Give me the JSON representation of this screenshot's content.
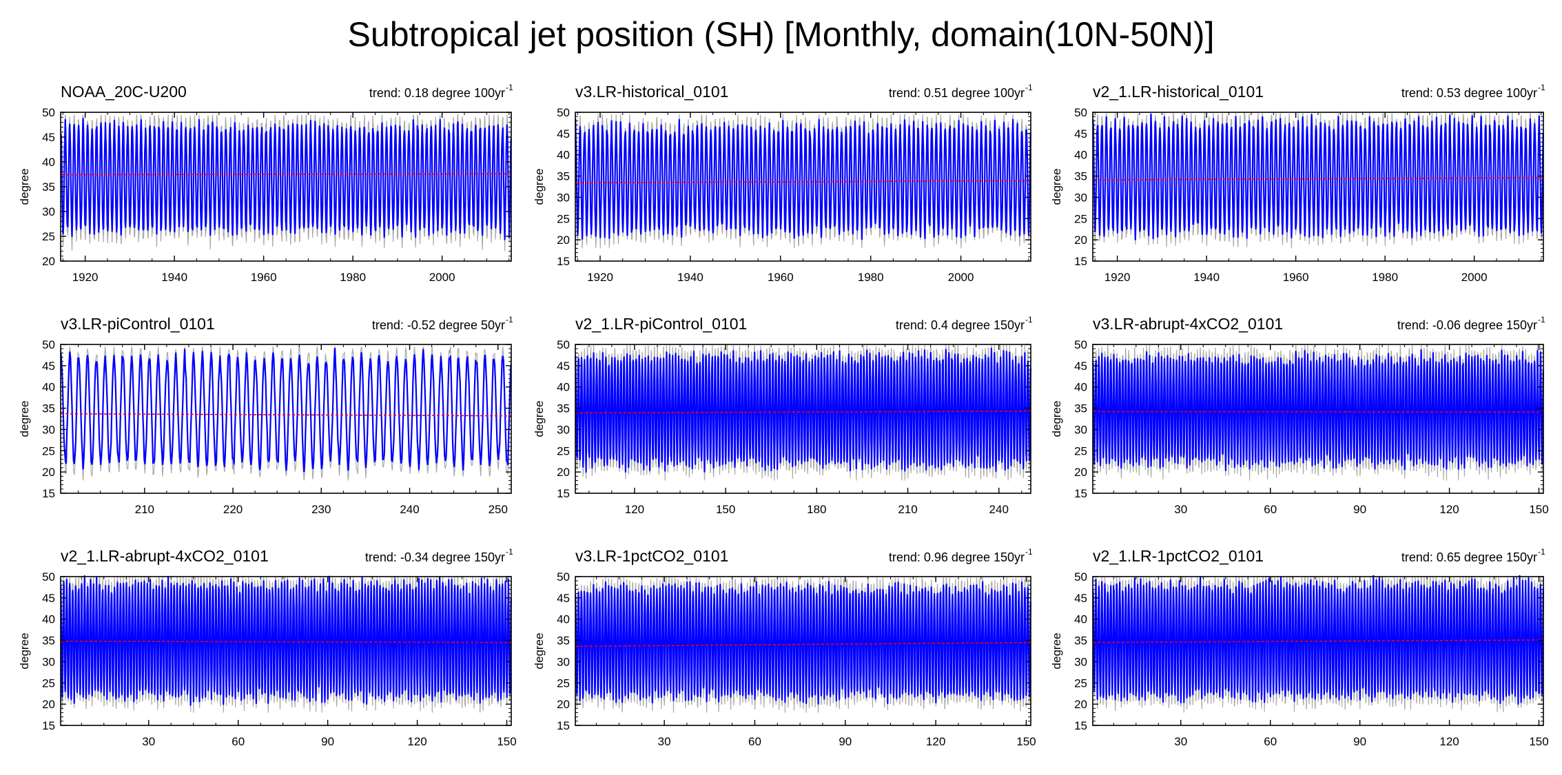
{
  "title": "Subtropical jet position (SH) [Monthly, domain(10N-50N)]",
  "colors": {
    "series": "#0000ff",
    "envelope": "#a9a9a9",
    "trend": "#ff0000",
    "axis": "#000000"
  },
  "chart_data": [
    {
      "type": "line",
      "name": "NOAA_20C-U200",
      "trend_text": "trend: 0.18 degree 100yr",
      "trend_exp": "-1",
      "ylabel": "degree",
      "ylim": [
        20,
        50
      ],
      "yticks": [
        20,
        25,
        30,
        35,
        40,
        45,
        50
      ],
      "xlim": [
        1914.5,
        2015.5
      ],
      "xticks": [
        1920,
        1940,
        1960,
        1980,
        2000
      ],
      "periods": 101,
      "series_low": 25.5,
      "series_high": 48,
      "env_low": 22,
      "env_high": 49.5,
      "trend_start": 37.4,
      "trend_end": 37.6
    },
    {
      "type": "line",
      "name": "v3.LR-historical_0101",
      "trend_text": "trend: 0.51 degree 100yr",
      "trend_exp": "-1",
      "ylabel": "degree",
      "ylim": [
        15,
        50
      ],
      "yticks": [
        15,
        20,
        25,
        30,
        35,
        40,
        45,
        50
      ],
      "xlim": [
        1914.5,
        2015.5
      ],
      "xticks": [
        1920,
        1940,
        1960,
        1980,
        2000
      ],
      "periods": 101,
      "series_low": 21,
      "series_high": 47.5,
      "env_low": 18,
      "env_high": 49.5,
      "trend_start": 33.4,
      "trend_end": 33.9
    },
    {
      "type": "line",
      "name": "v2_1.LR-historical_0101",
      "trend_text": "trend: 0.53 degree 100yr",
      "trend_exp": "-1",
      "ylabel": "degree",
      "ylim": [
        15,
        50
      ],
      "yticks": [
        15,
        20,
        25,
        30,
        35,
        40,
        45,
        50
      ],
      "xlim": [
        1914.5,
        2015.5
      ],
      "xticks": [
        1920,
        1940,
        1960,
        1980,
        2000
      ],
      "periods": 101,
      "series_low": 21,
      "series_high": 48.5,
      "env_low": 18,
      "env_high": 49.8,
      "trend_start": 34.1,
      "trend_end": 34.6
    },
    {
      "type": "line",
      "name": "v3.LR-piControl_0101",
      "trend_text": "trend: -0.52 degree 50yr",
      "trend_exp": "-1",
      "ylabel": "degree",
      "ylim": [
        15,
        50
      ],
      "yticks": [
        15,
        20,
        25,
        30,
        35,
        40,
        45,
        50
      ],
      "xlim": [
        200.5,
        251.5
      ],
      "xticks": [
        210,
        220,
        230,
        240,
        250
      ],
      "periods": 51,
      "series_low": 21,
      "series_high": 48,
      "env_low": 18,
      "env_high": 49.5,
      "trend_start": 33.7,
      "trend_end": 33.2
    },
    {
      "type": "line",
      "name": "v2_1.LR-piControl_0101",
      "trend_text": "trend: 0.4 degree 150yr",
      "trend_exp": "-1",
      "ylabel": "degree",
      "ylim": [
        15,
        50
      ],
      "yticks": [
        15,
        20,
        25,
        30,
        35,
        40,
        45,
        50
      ],
      "xlim": [
        100.5,
        250.5
      ],
      "xticks": [
        120,
        150,
        180,
        210,
        240
      ],
      "periods": 150,
      "series_low": 21,
      "series_high": 48,
      "env_low": 18,
      "env_high": 49.8,
      "trend_start": 33.9,
      "trend_end": 34.3
    },
    {
      "type": "line",
      "name": "v3.LR-abrupt-4xCO2_0101",
      "trend_text": "trend: -0.06 degree 150yr",
      "trend_exp": "-1",
      "ylabel": "degree",
      "ylim": [
        15,
        50
      ],
      "yticks": [
        15,
        20,
        25,
        30,
        35,
        40,
        45,
        50
      ],
      "xlim": [
        0.5,
        151.5
      ],
      "xticks": [
        30,
        60,
        90,
        120,
        150
      ],
      "periods": 151,
      "series_low": 21.5,
      "series_high": 47.5,
      "env_low": 18,
      "env_high": 49.8,
      "trend_start": 34.2,
      "trend_end": 34.1
    },
    {
      "type": "line",
      "name": "v2_1.LR-abrupt-4xCO2_0101",
      "trend_text": "trend: -0.34 degree 150yr",
      "trend_exp": "-1",
      "ylabel": "degree",
      "ylim": [
        15,
        50
      ],
      "yticks": [
        15,
        20,
        25,
        30,
        35,
        40,
        45,
        50
      ],
      "xlim": [
        0.5,
        151.5
      ],
      "xticks": [
        30,
        60,
        90,
        120,
        150
      ],
      "periods": 151,
      "series_low": 21,
      "series_high": 49,
      "env_low": 18,
      "env_high": 49.9,
      "trend_start": 34.8,
      "trend_end": 34.5
    },
    {
      "type": "line",
      "name": "v3.LR-1pctCO2_0101",
      "trend_text": "trend: 0.96 degree 150yr",
      "trend_exp": "-1",
      "ylabel": "degree",
      "ylim": [
        15,
        50
      ],
      "yticks": [
        15,
        20,
        25,
        30,
        35,
        40,
        45,
        50
      ],
      "xlim": [
        0.5,
        151.5
      ],
      "xticks": [
        30,
        60,
        90,
        120,
        150
      ],
      "periods": 151,
      "series_low": 21,
      "series_high": 48,
      "env_low": 18,
      "env_high": 49.8,
      "trend_start": 33.6,
      "trend_end": 34.5
    },
    {
      "type": "line",
      "name": "v2_1.LR-1pctCO2_0101",
      "trend_text": "trend: 0.65 degree 150yr",
      "trend_exp": "-1",
      "ylabel": "degree",
      "ylim": [
        15,
        50
      ],
      "yticks": [
        15,
        20,
        25,
        30,
        35,
        40,
        45,
        50
      ],
      "xlim": [
        0.5,
        151.5
      ],
      "xticks": [
        30,
        60,
        90,
        120,
        150
      ],
      "periods": 151,
      "series_low": 21,
      "series_high": 49,
      "env_low": 18,
      "env_high": 49.9,
      "trend_start": 34.5,
      "trend_end": 35.1
    }
  ]
}
